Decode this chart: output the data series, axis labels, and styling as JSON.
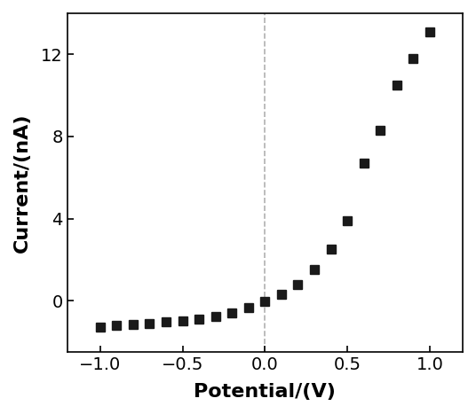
{
  "x": [
    -1.0,
    -0.9,
    -0.8,
    -0.7,
    -0.6,
    -0.5,
    -0.4,
    -0.3,
    -0.2,
    -0.1,
    0.0,
    0.1,
    0.2,
    0.3,
    0.4,
    0.5,
    0.6,
    0.7,
    0.8,
    0.9,
    1.0
  ],
  "y": [
    -1.3,
    -1.2,
    -1.15,
    -1.1,
    -1.05,
    -1.0,
    -0.9,
    -0.75,
    -0.6,
    -0.35,
    -0.05,
    0.3,
    0.8,
    1.5,
    2.5,
    3.9,
    6.7,
    8.3,
    10.5,
    11.8,
    13.1
  ],
  "xlim": [
    -1.2,
    1.2
  ],
  "ylim": [
    -2.5,
    14
  ],
  "xticks": [
    -1.0,
    -0.5,
    0.0,
    0.5,
    1.0
  ],
  "yticks": [
    0,
    4,
    8,
    12
  ],
  "xlabel": "Potential/(V)",
  "ylabel": "Current/(nA)",
  "marker": "s",
  "markersize": 7,
  "color": "#1a1a1a",
  "linewidth": 0,
  "vline_x": 0.0,
  "vline_color": "#b0b0b0",
  "vline_style": "--",
  "bg_color": "#ffffff",
  "spine_color": "#000000",
  "tick_label_fontsize": 14,
  "axis_label_fontsize": 16
}
